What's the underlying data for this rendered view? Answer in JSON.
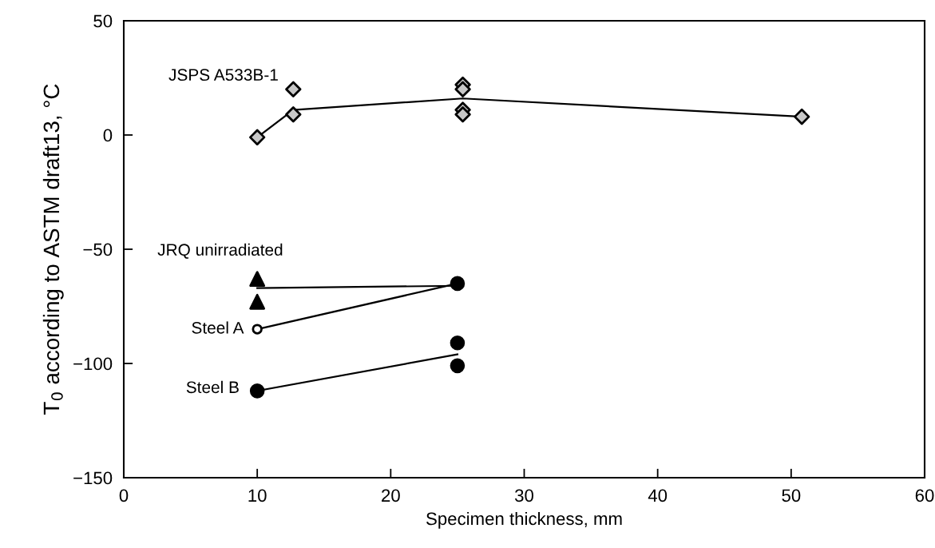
{
  "chart_data": {
    "type": "scatter",
    "xlabel": "Specimen thickness, mm",
    "ylabel": "T$_{0}$ according to ASTM draft13, °C",
    "xlim": [
      0,
      60
    ],
    "xticks": [
      0,
      10,
      20,
      30,
      40,
      50,
      60
    ],
    "ylim": [
      -150,
      50
    ],
    "yticks": [
      {
        "value": -150,
        "label": "−150"
      },
      {
        "value": -100,
        "label": "−100"
      },
      {
        "value": -50,
        "label": "−50"
      },
      0,
      50
    ],
    "grid": false,
    "legend": false,
    "series": [
      {
        "name": "JSPS A533B-1",
        "marker": "diamond",
        "color": "#c8c8c8",
        "x": [
          10,
          12.7,
          12.7,
          25.4,
          25.4,
          25.4,
          25.4,
          50.8
        ],
        "values": [
          -1,
          20,
          9,
          22,
          20,
          11,
          9,
          8
        ]
      },
      {
        "type": "line",
        "marker": "none",
        "line_style": "solid",
        "color": "#000000",
        "x": [
          10,
          12.7,
          25.4,
          50.8
        ],
        "values": [
          -1,
          11,
          16,
          8
        ]
      },
      {
        "name": "JRQ unirradiated",
        "marker": "triangle",
        "color": "#000000",
        "x": [
          10,
          10
        ],
        "values": [
          -63,
          -73
        ]
      },
      {
        "type": "line",
        "marker": "none",
        "line_style": "solid",
        "color": "#000000",
        "x": [
          10,
          25
        ],
        "values": [
          -67,
          -66
        ]
      },
      {
        "name": "Steel A",
        "marker": "circle",
        "colors": [
          "#ffffff",
          "#000000"
        ],
        "x": [
          10,
          25
        ],
        "values": [
          -85,
          -65
        ]
      },
      {
        "type": "line",
        "marker": "none",
        "line_style": "solid",
        "color": "#000000",
        "x": [
          10,
          25
        ],
        "values": [
          -85,
          -65
        ]
      },
      {
        "name": "Steel B",
        "marker": "circle",
        "color": "#000000",
        "x": [
          10,
          25,
          25
        ],
        "values": [
          -112,
          -91,
          -101
        ]
      },
      {
        "type": "line",
        "marker": "none",
        "line_style": "solid",
        "color": "#000000",
        "x": [
          10,
          25
        ],
        "values": [
          -112,
          -96
        ]
      }
    ]
  }
}
